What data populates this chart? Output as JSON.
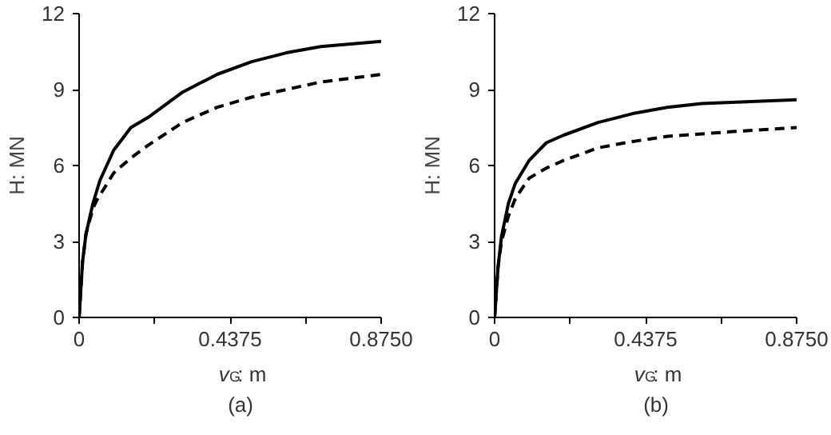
{
  "chart_data": [
    {
      "type": "line",
      "xlabel": "v$_{G}$: m",
      "ylabel": "H: MN",
      "annotations": [
        "(a)"
      ],
      "xlim": [
        0,
        0.875
      ],
      "ylim": [
        0,
        12
      ],
      "xticks": [
        0,
        {
          "value": 0.21875,
          "label": null
        },
        {
          "value": 0.4375,
          "label": "0.4375"
        },
        {
          "value": 0.65625,
          "label": null
        },
        {
          "value": 0.875,
          "label": "0.8750"
        }
      ],
      "yticks": [
        0,
        3,
        6,
        9,
        12
      ],
      "grid": false,
      "series": [
        {
          "color": "#000000",
          "line_style": "solid",
          "x": [
            0,
            0.01,
            0.02,
            0.04,
            0.06,
            0.1,
            0.15,
            0.2,
            0.3,
            0.4,
            0.5,
            0.6,
            0.7,
            0.875
          ],
          "values": [
            0,
            2.2,
            3.3,
            4.5,
            5.4,
            6.6,
            7.5,
            7.9,
            8.9,
            9.6,
            10.1,
            10.45,
            10.7,
            10.9
          ]
        },
        {
          "color": "#000000",
          "line_style": "dashed",
          "x": [
            0,
            0.01,
            0.02,
            0.04,
            0.05,
            0.1,
            0.15,
            0.2,
            0.3,
            0.4,
            0.5,
            0.6,
            0.7,
            0.875
          ],
          "values": [
            0,
            2.2,
            3.3,
            4.3,
            4.6,
            5.7,
            6.3,
            6.8,
            7.7,
            8.3,
            8.7,
            9.0,
            9.3,
            9.6
          ]
        }
      ]
    },
    {
      "type": "line",
      "xlabel": "v$_{G}$: m",
      "ylabel": "H: MN",
      "annotations": [
        "(b)"
      ],
      "xlim": [
        0,
        0.875
      ],
      "ylim": [
        0,
        12
      ],
      "xticks": [
        0,
        {
          "value": 0.21875,
          "label": null
        },
        {
          "value": 0.4375,
          "label": "0.4375"
        },
        {
          "value": 0.65625,
          "label": null
        },
        {
          "value": 0.875,
          "label": "0.8750"
        }
      ],
      "yticks": [
        0,
        3,
        6,
        9,
        12
      ],
      "grid": false,
      "series": [
        {
          "color": "#000000",
          "line_style": "solid",
          "x": [
            0,
            0.01,
            0.02,
            0.04,
            0.06,
            0.1,
            0.15,
            0.2,
            0.3,
            0.4,
            0.5,
            0.6,
            0.7,
            0.875
          ],
          "values": [
            0,
            2.0,
            3.2,
            4.5,
            5.3,
            6.2,
            6.9,
            7.2,
            7.7,
            8.05,
            8.3,
            8.45,
            8.5,
            8.6
          ]
        },
        {
          "color": "#000000",
          "line_style": "dashed",
          "x": [
            0,
            0.01,
            0.02,
            0.04,
            0.06,
            0.1,
            0.15,
            0.2,
            0.3,
            0.4,
            0.5,
            0.6,
            0.7,
            0.875
          ],
          "values": [
            0,
            2.0,
            3.0,
            4.0,
            4.7,
            5.5,
            5.9,
            6.2,
            6.7,
            6.95,
            7.15,
            7.25,
            7.35,
            7.5
          ]
        }
      ]
    }
  ]
}
